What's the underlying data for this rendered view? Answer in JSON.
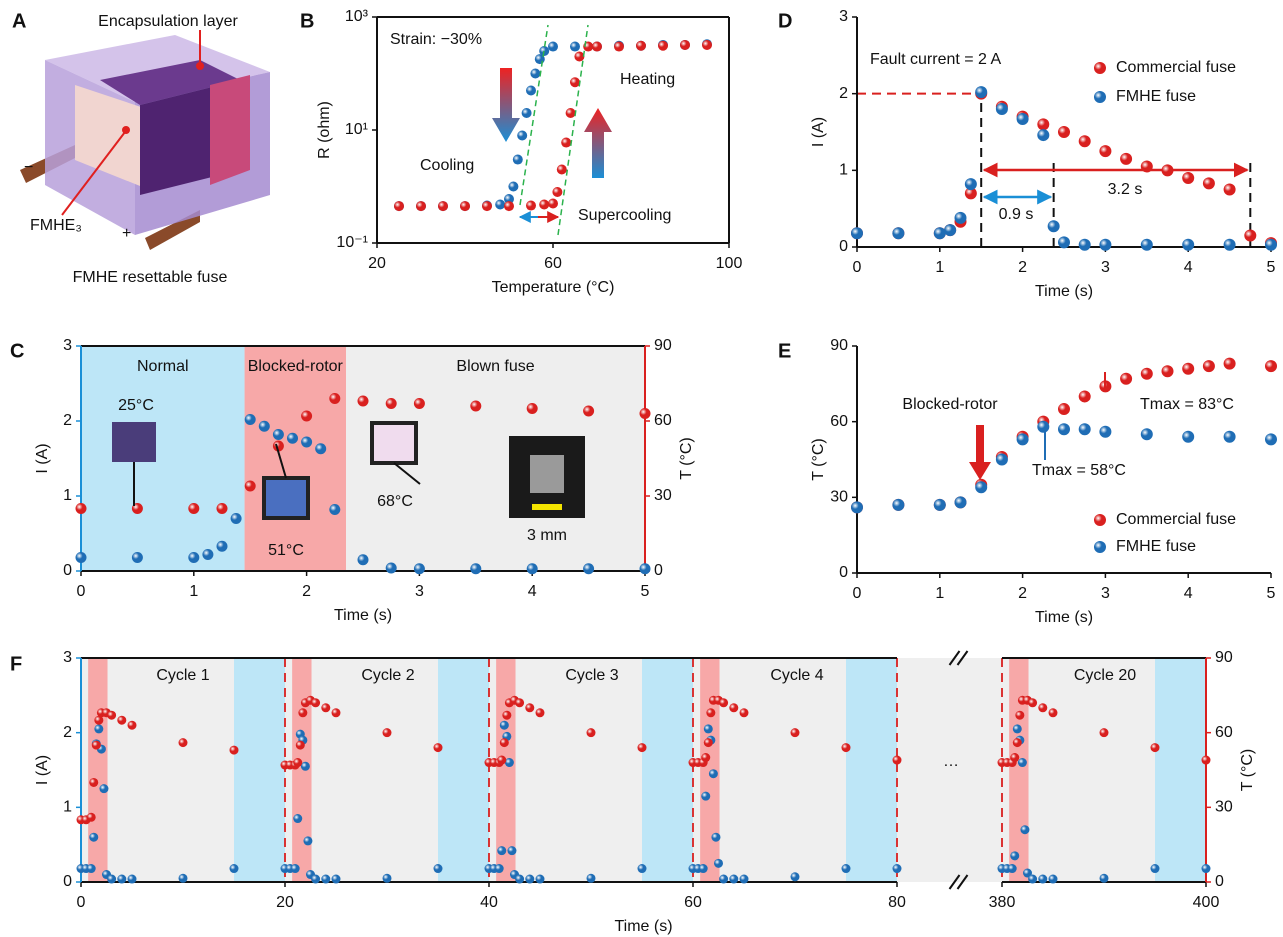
{
  "diagram": {
    "panel": "A",
    "encapsulation": "Encapsulation layer",
    "element": "FMHE₃",
    "minus": "−",
    "plus": "+",
    "caption": "FMHE resettable fuse"
  },
  "chart_data": [
    {
      "panel": "B",
      "type": "scatter",
      "x_label": "Temperature (°C)",
      "y_label": "R (ohm)",
      "log_y": true,
      "xlim": [
        20,
        100
      ],
      "xticks": [
        20,
        60,
        100
      ],
      "ylim": [
        0.1,
        1000
      ],
      "yticks": [
        {
          "value": 0.1,
          "label": "10⁻¹"
        },
        {
          "value": 10,
          "label": "10¹"
        },
        {
          "value": 1000,
          "label": "10³"
        }
      ],
      "annotations": [
        "Strain: −30%",
        "Supercooling"
      ],
      "series": [
        {
          "name": "Cooling",
          "color": "#1f6db5",
          "x": [
            25,
            30,
            35,
            40,
            45,
            48,
            50,
            51,
            52,
            53,
            54,
            55,
            56,
            57,
            58,
            60,
            65,
            70,
            75,
            80,
            85,
            90,
            95
          ],
          "values": [
            0.45,
            0.45,
            0.45,
            0.45,
            0.46,
            0.48,
            0.6,
            1,
            3,
            8,
            20,
            50,
            100,
            180,
            250,
            300,
            300,
            300,
            310,
            310,
            320,
            320,
            330
          ]
        },
        {
          "name": "Heating",
          "color": "#d9201f",
          "x": [
            25,
            30,
            35,
            40,
            45,
            50,
            55,
            58,
            60,
            61,
            62,
            63,
            64,
            65,
            66,
            68,
            70,
            75,
            80,
            85,
            90,
            95
          ],
          "values": [
            0.45,
            0.45,
            0.45,
            0.45,
            0.45,
            0.45,
            0.46,
            0.48,
            0.5,
            0.8,
            2,
            6,
            20,
            70,
            200,
            300,
            300,
            300,
            310,
            310,
            320,
            320
          ]
        }
      ]
    },
    {
      "panel": "C",
      "type": "scatter",
      "x_label": "Time (s)",
      "y_label": "I (A)",
      "y2_label": "T (°C)",
      "y_color": "#1a8fd6",
      "y2_color": "#d9201f",
      "xlim": [
        0,
        5
      ],
      "xticks": [
        0,
        1,
        2,
        3,
        4,
        5
      ],
      "ylim": [
        0,
        3
      ],
      "yticks": [
        0,
        1,
        2,
        3
      ],
      "y2lim": [
        0,
        90
      ],
      "y2ticks": [
        0,
        30,
        60,
        90
      ],
      "regions": [
        {
          "label": "Normal",
          "start": 0,
          "end": 1.45,
          "color": "#bde6f7"
        },
        {
          "label": "Blocked-rotor",
          "start": 1.45,
          "end": 2.35,
          "color": "#f7a8a8"
        },
        {
          "label": "Blown fuse",
          "start": 2.35,
          "end": 5,
          "color": "#eeeeee"
        }
      ],
      "annotations": [
        "25°C",
        "51°C",
        "68°C",
        "3 mm"
      ],
      "series": [
        {
          "color": "#1f6db5",
          "x": [
            0,
            0.5,
            1,
            1.125,
            1.25,
            1.375,
            1.5,
            1.625,
            1.75,
            1.875,
            2,
            2.125,
            2.25,
            2.5,
            2.75,
            3,
            3.5,
            4,
            4.5,
            5
          ],
          "values": [
            0.18,
            0.18,
            0.18,
            0.22,
            0.33,
            0.7,
            2.02,
            1.93,
            1.82,
            1.77,
            1.72,
            1.63,
            0.82,
            0.15,
            0.04,
            0.03,
            0.03,
            0.03,
            0.03,
            0.03
          ]
        },
        {
          "color": "#d9201f",
          "axis": "y2",
          "x": [
            0,
            0.5,
            1,
            1.25,
            1.5,
            1.75,
            2,
            2.25,
            2.5,
            2.75,
            3,
            3.5,
            4,
            4.5,
            5
          ],
          "values": [
            25,
            25,
            25,
            25,
            34,
            50,
            62,
            69,
            68,
            67,
            67,
            66,
            65,
            64,
            63
          ]
        }
      ]
    },
    {
      "panel": "D",
      "type": "scatter",
      "x_label": "Time (s)",
      "y_label": "I (A)",
      "legend": "upper right",
      "xlim": [
        0,
        5
      ],
      "xticks": [
        0,
        1,
        2,
        3,
        4,
        5
      ],
      "ylim": [
        0,
        3
      ],
      "yticks": [
        0,
        1,
        2,
        3
      ],
      "hline": 2,
      "vlines": [
        1.5,
        2.375,
        4.75
      ],
      "annotations": [
        "Fault current = 2 A",
        "0.9 s",
        "3.2 s"
      ],
      "series": [
        {
          "name": "Commercial fuse",
          "color": "#d9201f",
          "x": [
            0,
            0.5,
            1,
            1.125,
            1.25,
            1.375,
            1.5,
            1.75,
            2,
            2.25,
            2.5,
            2.75,
            3,
            3.25,
            3.5,
            3.75,
            4,
            4.25,
            4.5,
            4.75,
            5
          ],
          "values": [
            0.18,
            0.18,
            0.18,
            0.22,
            0.33,
            0.7,
            2.0,
            1.83,
            1.7,
            1.6,
            1.5,
            1.38,
            1.25,
            1.15,
            1.05,
            1.0,
            0.9,
            0.83,
            0.75,
            0.15,
            0.05
          ]
        },
        {
          "name": "FMHE fuse",
          "color": "#1f6db5",
          "x": [
            0,
            0.5,
            1,
            1.125,
            1.25,
            1.375,
            1.5,
            1.75,
            2,
            2.25,
            2.375,
            2.5,
            2.75,
            3,
            3.5,
            4,
            4.5,
            5
          ],
          "values": [
            0.18,
            0.18,
            0.18,
            0.22,
            0.38,
            0.82,
            2.02,
            1.8,
            1.67,
            1.46,
            0.27,
            0.06,
            0.03,
            0.03,
            0.03,
            0.03,
            0.03,
            0.03
          ]
        }
      ]
    },
    {
      "panel": "E",
      "type": "scatter",
      "x_label": "Time (s)",
      "y_label": "T (°C)",
      "legend": "lower right",
      "xlim": [
        0,
        5
      ],
      "xticks": [
        0,
        1,
        2,
        3,
        4,
        5
      ],
      "ylim": [
        0,
        90
      ],
      "yticks": [
        0,
        30,
        60,
        90
      ],
      "annotations": [
        "Blocked-rotor",
        "Tmax = 83°C",
        "Tmax = 58°C"
      ],
      "series": [
        {
          "name": "Commercial fuse",
          "color": "#d9201f",
          "x": [
            0,
            0.5,
            1,
            1.25,
            1.5,
            1.75,
            2,
            2.25,
            2.5,
            2.75,
            3,
            3.25,
            3.5,
            3.75,
            4,
            4.25,
            4.5,
            5
          ],
          "values": [
            26,
            27,
            27,
            28,
            35,
            46,
            54,
            60,
            65,
            70,
            74,
            77,
            79,
            80,
            81,
            82,
            83,
            82
          ]
        },
        {
          "name": "FMHE fuse",
          "color": "#1f6db5",
          "x": [
            0,
            0.5,
            1,
            1.25,
            1.5,
            1.75,
            2,
            2.25,
            2.5,
            2.75,
            3,
            3.5,
            4,
            4.5,
            5
          ],
          "values": [
            26,
            27,
            27,
            28,
            34,
            45,
            53,
            58,
            57,
            57,
            56,
            55,
            54,
            54,
            53
          ]
        }
      ]
    },
    {
      "panel": "F",
      "type": "scatter",
      "x_label": "Time (s)",
      "y_label": "I (A)",
      "y2_label": "T (°C)",
      "y_color": "#1a8fd6",
      "y2_color": "#d9201f",
      "background": "#efefef",
      "x_segments": [
        [
          0,
          80
        ],
        [
          380,
          400
        ]
      ],
      "xticks": [
        0,
        20,
        40,
        60,
        80,
        380,
        400
      ],
      "ylim": [
        0,
        3
      ],
      "yticks": [
        0,
        1,
        2,
        3
      ],
      "y2lim": [
        0,
        90
      ],
      "y2ticks": [
        0,
        30,
        60,
        90
      ],
      "vlines": [
        20,
        40,
        60,
        80,
        380
      ],
      "regions": [
        {
          "start": 0.7,
          "end": 2.6,
          "color": "#f7a8a8"
        },
        {
          "start": 15,
          "end": 20,
          "color": "#bde6f7"
        },
        {
          "start": 20.7,
          "end": 22.6,
          "color": "#f7a8a8"
        },
        {
          "start": 35,
          "end": 40,
          "color": "#bde6f7"
        },
        {
          "start": 40.7,
          "end": 42.6,
          "color": "#f7a8a8"
        },
        {
          "start": 55,
          "end": 60,
          "color": "#bde6f7"
        },
        {
          "start": 60.7,
          "end": 62.6,
          "color": "#f7a8a8"
        },
        {
          "start": 75,
          "end": 80,
          "color": "#bde6f7"
        },
        {
          "start": 380.7,
          "end": 382.6,
          "color": "#f7a8a8"
        },
        {
          "start": 395,
          "end": 400,
          "color": "#bde6f7"
        }
      ],
      "annotations": [
        "Cycle 1",
        "Cycle 2",
        "Cycle 3",
        "Cycle 4",
        "Cycle 20",
        "…"
      ],
      "series": [
        {
          "color": "#1f6db5",
          "x": [
            0,
            0.5,
            1,
            1.25,
            1.5,
            1.75,
            2,
            2.25,
            2.5,
            3,
            4,
            5,
            10,
            15,
            20,
            20.5,
            21,
            21.25,
            21.5,
            21.75,
            22,
            22.25,
            22.5,
            23,
            24,
            25,
            30,
            35,
            40,
            40.5,
            41,
            41.25,
            41.5,
            41.75,
            42,
            42.25,
            42.5,
            43,
            44,
            45,
            50,
            55,
            60,
            60.5,
            61,
            61.25,
            61.5,
            61.75,
            62,
            62.25,
            62.5,
            63,
            64,
            65,
            70,
            75,
            80,
            380,
            380.5,
            381,
            381.25,
            381.5,
            381.75,
            382,
            382.25,
            382.5,
            383,
            384,
            385,
            390,
            395,
            400
          ],
          "values": [
            0.18,
            0.18,
            0.18,
            0.6,
            1.85,
            2.05,
            1.78,
            1.25,
            0.1,
            0.04,
            0.04,
            0.04,
            0.05,
            0.18,
            0.18,
            0.18,
            0.18,
            0.85,
            1.98,
            1.9,
            1.55,
            0.55,
            0.1,
            0.04,
            0.04,
            0.04,
            0.05,
            0.18,
            0.18,
            0.18,
            0.18,
            0.42,
            2.1,
            1.95,
            1.6,
            0.42,
            0.1,
            0.04,
            0.04,
            0.04,
            0.05,
            0.18,
            0.18,
            0.18,
            0.18,
            1.15,
            2.05,
            1.9,
            1.45,
            0.6,
            0.25,
            0.04,
            0.04,
            0.04,
            0.07,
            0.18,
            0.18,
            0.18,
            0.18,
            0.18,
            0.35,
            2.05,
            1.9,
            1.6,
            0.7,
            0.12,
            0.04,
            0.04,
            0.04,
            0.05,
            0.18,
            0.18
          ]
        },
        {
          "color": "#d9201f",
          "axis": "y2",
          "x": [
            0,
            0.5,
            1,
            1.25,
            1.5,
            1.75,
            2,
            2.5,
            3,
            4,
            5,
            10,
            15,
            20,
            20.5,
            21,
            21.25,
            21.5,
            21.75,
            22,
            22.5,
            23,
            24,
            25,
            30,
            35,
            40,
            40.5,
            41,
            41.25,
            41.5,
            41.75,
            42,
            42.5,
            43,
            44,
            45,
            50,
            55,
            60,
            60.5,
            61,
            61.25,
            61.5,
            61.75,
            62,
            62.5,
            63,
            64,
            65,
            70,
            75,
            80,
            380,
            380.5,
            381,
            381.25,
            381.5,
            381.75,
            382,
            382.5,
            383,
            384,
            385,
            390,
            395,
            400
          ],
          "values": [
            25,
            25,
            26,
            40,
            55,
            65,
            68,
            68,
            67,
            65,
            63,
            56,
            53,
            47,
            47,
            47,
            48,
            55,
            68,
            72,
            73,
            72,
            70,
            68,
            60,
            54,
            48,
            48,
            48,
            49,
            56,
            67,
            72,
            73,
            72,
            70,
            68,
            60,
            54,
            48,
            48,
            48,
            50,
            56,
            68,
            73,
            73,
            72,
            70,
            68,
            60,
            54,
            49,
            48,
            48,
            48,
            50,
            56,
            67,
            73,
            73,
            72,
            70,
            68,
            60,
            54,
            49
          ]
        }
      ]
    }
  ]
}
